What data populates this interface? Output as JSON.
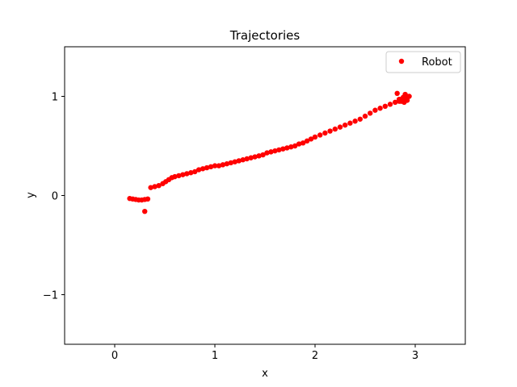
{
  "chart_data": {
    "type": "scatter",
    "title": "Trajectories",
    "xlabel": "x",
    "ylabel": "y",
    "xlim": [
      -0.5,
      3.5
    ],
    "ylim": [
      -1.5,
      1.5
    ],
    "xticks": [
      0,
      1,
      2,
      3
    ],
    "xtick_labels": [
      "0",
      "1",
      "2",
      "3"
    ],
    "yticks": [
      -1,
      0,
      1
    ],
    "ytick_labels": [
      "−1",
      "0",
      "1"
    ],
    "grid": false,
    "legend_position": "top-right",
    "series": [
      {
        "name": "Robot",
        "color": "#ff0000",
        "marker": "circle",
        "x": [
          0.15,
          0.18,
          0.21,
          0.24,
          0.27,
          0.3,
          0.33,
          0.3,
          0.36,
          0.4,
          0.44,
          0.48,
          0.51,
          0.54,
          0.57,
          0.6,
          0.64,
          0.68,
          0.72,
          0.76,
          0.8,
          0.84,
          0.88,
          0.92,
          0.96,
          1.0,
          1.04,
          1.08,
          1.12,
          1.16,
          1.2,
          1.24,
          1.28,
          1.32,
          1.36,
          1.4,
          1.44,
          1.48,
          1.52,
          1.56,
          1.6,
          1.64,
          1.68,
          1.72,
          1.76,
          1.8,
          1.84,
          1.88,
          1.92,
          1.96,
          2.0,
          2.05,
          2.1,
          2.15,
          2.2,
          2.25,
          2.3,
          2.35,
          2.4,
          2.45,
          2.5,
          2.55,
          2.6,
          2.65,
          2.7,
          2.75,
          2.8,
          2.84,
          2.86,
          2.88,
          2.9,
          2.92,
          2.94,
          2.82,
          2.84,
          2.86,
          2.88,
          2.9,
          2.85,
          2.89
        ],
        "y": [
          -0.03,
          -0.035,
          -0.04,
          -0.045,
          -0.045,
          -0.04,
          -0.035,
          -0.16,
          0.08,
          0.09,
          0.1,
          0.12,
          0.14,
          0.16,
          0.18,
          0.19,
          0.2,
          0.21,
          0.22,
          0.23,
          0.24,
          0.26,
          0.27,
          0.28,
          0.29,
          0.3,
          0.3,
          0.31,
          0.32,
          0.33,
          0.34,
          0.35,
          0.36,
          0.37,
          0.38,
          0.39,
          0.4,
          0.41,
          0.43,
          0.44,
          0.45,
          0.46,
          0.47,
          0.48,
          0.49,
          0.5,
          0.52,
          0.53,
          0.55,
          0.57,
          0.59,
          0.61,
          0.63,
          0.65,
          0.67,
          0.69,
          0.71,
          0.73,
          0.75,
          0.77,
          0.8,
          0.83,
          0.86,
          0.88,
          0.9,
          0.92,
          0.94,
          0.95,
          0.97,
          0.96,
          0.98,
          0.96,
          1.0,
          1.03,
          0.97,
          0.95,
          0.99,
          1.02,
          0.96,
          0.94
        ]
      }
    ]
  }
}
